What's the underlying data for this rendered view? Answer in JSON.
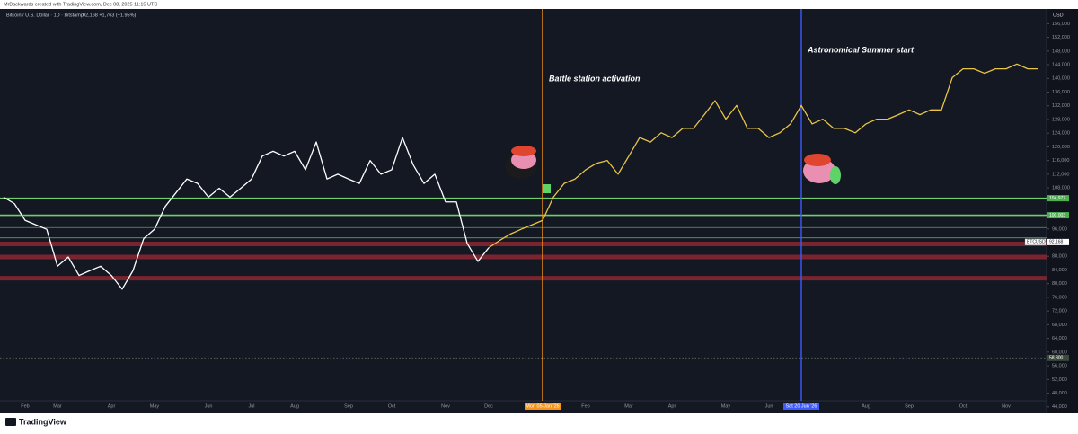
{
  "chart_data": {
    "type": "line",
    "credit": "MrBackwards created with TradingView.com, Dec 08, 2025 11:15 UTC",
    "symbol": "Bitcoin / U.S. Dollar · 1D · Bitstamp",
    "quote": "92,168 +1,763 (+1.95%)",
    "currency": "USD",
    "brand": "TradingView",
    "categories": [
      null,
      null,
      "Feb",
      null,
      null,
      "Mar",
      null,
      null,
      null,
      null,
      "Apr",
      null,
      null,
      null,
      "May",
      null,
      null,
      null,
      null,
      "Jun",
      null,
      null,
      null,
      "Jul",
      null,
      null,
      null,
      "Aug",
      null,
      null,
      null,
      null,
      "Sep",
      null,
      null,
      null,
      "Oct",
      null,
      null,
      null,
      null,
      "Nov",
      null,
      null,
      null,
      "Dec",
      null,
      null,
      null,
      null,
      "Mon 05 Jan '26",
      null,
      null,
      null,
      "Feb",
      null,
      null,
      null,
      "Mar",
      null,
      null,
      null,
      "Apr",
      null,
      null,
      null,
      null,
      "May",
      null,
      null,
      null,
      "Jun",
      null,
      null,
      "Sat 20 Jun '26",
      null,
      null,
      null,
      null,
      null,
      "Aug",
      null,
      null,
      null,
      "Sep",
      null,
      null,
      null,
      null,
      "Oct",
      null,
      null,
      null,
      "Nov",
      null,
      null,
      null
    ],
    "series": [
      {
        "name": "BTCUSD",
        "color": "#ffffff",
        "values": [
          105300,
          103400,
          98500,
          97200,
          95900,
          85100,
          87800,
          82400,
          83800,
          85100,
          82400,
          78400,
          83800,
          93200,
          95900,
          102600,
          106600,
          110600,
          109300,
          105300,
          107900,
          105300,
          107900,
          110600,
          117300,
          118700,
          117300,
          118700,
          113300,
          121400,
          110600,
          112000,
          110600,
          109300,
          116000,
          112000,
          113300,
          122700,
          114700,
          109300,
          112000,
          103900,
          103900,
          91800,
          86500,
          90500,
          null,
          null,
          null,
          null,
          null,
          null,
          null,
          null,
          null,
          null,
          null,
          null,
          null,
          null,
          null,
          null,
          null,
          null,
          null,
          null,
          null,
          null,
          null,
          null,
          null,
          null,
          null,
          null,
          null,
          null,
          null,
          null,
          null,
          null,
          null,
          null,
          null,
          null,
          null,
          null,
          null,
          null,
          null,
          null,
          null,
          null,
          null,
          null,
          null,
          null,
          null
        ]
      },
      {
        "name": "Projection",
        "color": "#e8c547",
        "values": [
          null,
          null,
          null,
          null,
          null,
          null,
          null,
          null,
          null,
          null,
          null,
          null,
          null,
          null,
          null,
          null,
          null,
          null,
          null,
          null,
          null,
          null,
          null,
          null,
          null,
          null,
          null,
          null,
          null,
          null,
          null,
          null,
          null,
          null,
          null,
          null,
          null,
          null,
          null,
          null,
          null,
          null,
          null,
          null,
          null,
          90500,
          92600,
          94500,
          95900,
          97200,
          98500,
          105300,
          109300,
          110600,
          113300,
          115200,
          116000,
          112000,
          117300,
          122700,
          121400,
          124100,
          122700,
          125400,
          125400,
          129400,
          133500,
          128100,
          132100,
          125400,
          125400,
          122700,
          124100,
          126700,
          132100,
          126700,
          128100,
          125400,
          125400,
          124100,
          126700,
          128100,
          128100,
          129400,
          130800,
          129400,
          130800,
          130800,
          140200,
          142800,
          142800,
          141500,
          142800,
          142800,
          144200,
          142800,
          142800
        ]
      }
    ],
    "ylim": [
      42100,
      160300
    ],
    "yticks": [
      {
        "value": 156000,
        "label": "156,000"
      },
      {
        "value": 152000,
        "label": "152,000"
      },
      {
        "value": 148000,
        "label": "148,000"
      },
      {
        "value": 144000,
        "label": "144,000"
      },
      {
        "value": 140000,
        "label": "140,000"
      },
      {
        "value": 136000,
        "label": "136,000"
      },
      {
        "value": 132000,
        "label": "132,000"
      },
      {
        "value": 128000,
        "label": "128,000"
      },
      {
        "value": 124000,
        "label": "124,000"
      },
      {
        "value": 120000,
        "label": "120,000"
      },
      {
        "value": 116000,
        "label": "116,000"
      },
      {
        "value": 112000,
        "label": "112,000"
      },
      {
        "value": 108000,
        "label": "108,000"
      },
      {
        "value": 96000,
        "label": "96,000"
      },
      {
        "value": 88000,
        "label": "88,000"
      },
      {
        "value": 84000,
        "label": "84,000"
      },
      {
        "value": 80000,
        "label": "80,000"
      },
      {
        "value": 76000,
        "label": "76,000"
      },
      {
        "value": 72000,
        "label": "72,000"
      },
      {
        "value": 68000,
        "label": "68,000"
      },
      {
        "value": 64000,
        "label": "64,000"
      },
      {
        "value": 60000,
        "label": "60,000"
      },
      {
        "value": 56000,
        "label": "56,000"
      },
      {
        "value": 52000,
        "label": "52,000"
      },
      {
        "value": 48000,
        "label": "48,000"
      },
      {
        "value": 44000,
        "label": "44,000"
      }
    ],
    "grid": false,
    "levels": [
      {
        "value": 104977,
        "label": "104,977",
        "kind": "line",
        "color": "#6fcf6a"
      },
      {
        "value": 100003,
        "label": "100,003",
        "kind": "line",
        "color": "#6fcf6a"
      },
      {
        "value": 96400,
        "kind": "thin",
        "color": "#5f9e5c"
      },
      {
        "value": 93400,
        "kind": "thin",
        "color": "#5f9e5c"
      },
      {
        "value": 91600,
        "kind": "band",
        "color": "#7a2430"
      },
      {
        "value": 87800,
        "kind": "band",
        "color": "#7a2430"
      },
      {
        "value": 81600,
        "kind": "band",
        "color": "#7a2430"
      },
      {
        "value": 58300,
        "label": "58,300",
        "kind": "dotted",
        "color": "#5e6b5e"
      }
    ],
    "price_label": {
      "name": "BTCUSD",
      "value": 92168,
      "label": "92,168"
    },
    "markers": [
      {
        "category": "Mon 05 Jan '26",
        "color": "#f7931a",
        "annotation": "Battle station activation"
      },
      {
        "category": "Sat 20 Jun '26",
        "color": "#3d5afe",
        "annotation": "Astronomical Summer start"
      }
    ]
  }
}
